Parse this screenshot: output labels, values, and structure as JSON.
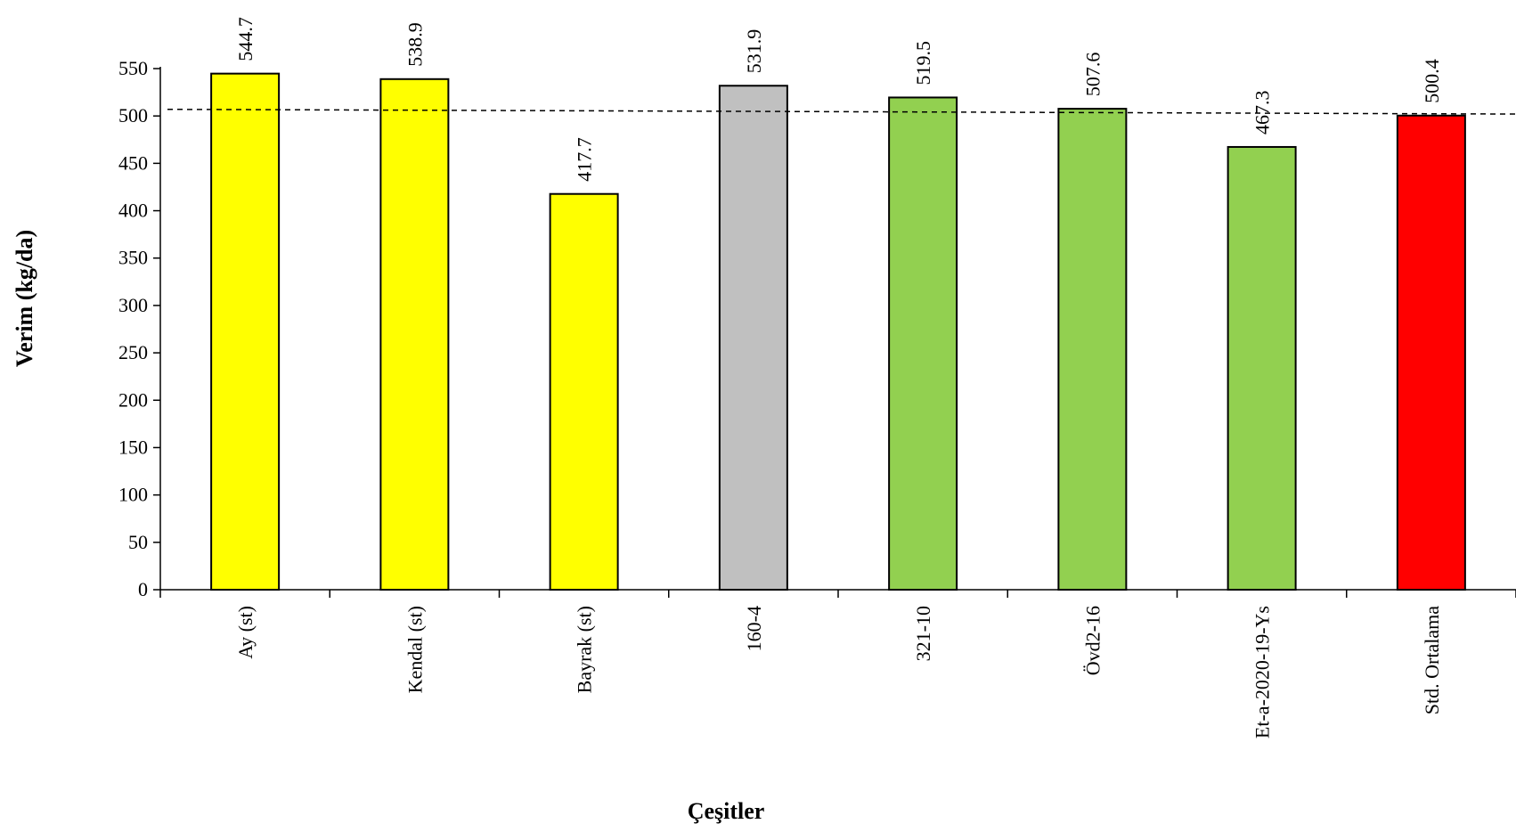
{
  "chart_data": {
    "type": "bar",
    "categories": [
      "Ay (st)",
      "Kendal (st)",
      "Bayrak (st)",
      "160-4",
      "321-10",
      "Övd2-16",
      "Et-a-2020-19-Ys",
      "Std. Ortalama"
    ],
    "values": [
      544.7,
      538.9,
      417.7,
      531.9,
      519.5,
      507.6,
      467.3,
      500.4
    ],
    "value_labels": [
      "544.7",
      "538.9",
      "417.7",
      "531.9",
      "519.5",
      "507.6",
      "467.3",
      "500.4"
    ],
    "colors": [
      "#FFFF00",
      "#FFFF00",
      "#FFFF00",
      "#C0C0C0",
      "#92D050",
      "#92D050",
      "#92D050",
      "#FF0000"
    ],
    "xlabel": "Çeşitler",
    "ylabel": "Verim (kg/da)",
    "ylim": [
      0,
      550
    ],
    "yticks": [
      0,
      50,
      100,
      150,
      200,
      250,
      300,
      350,
      400,
      450,
      500,
      550
    ],
    "reference_line": {
      "style": "dashed",
      "start_value": 507,
      "end_value": 502
    },
    "grid": false,
    "legend": "none"
  }
}
